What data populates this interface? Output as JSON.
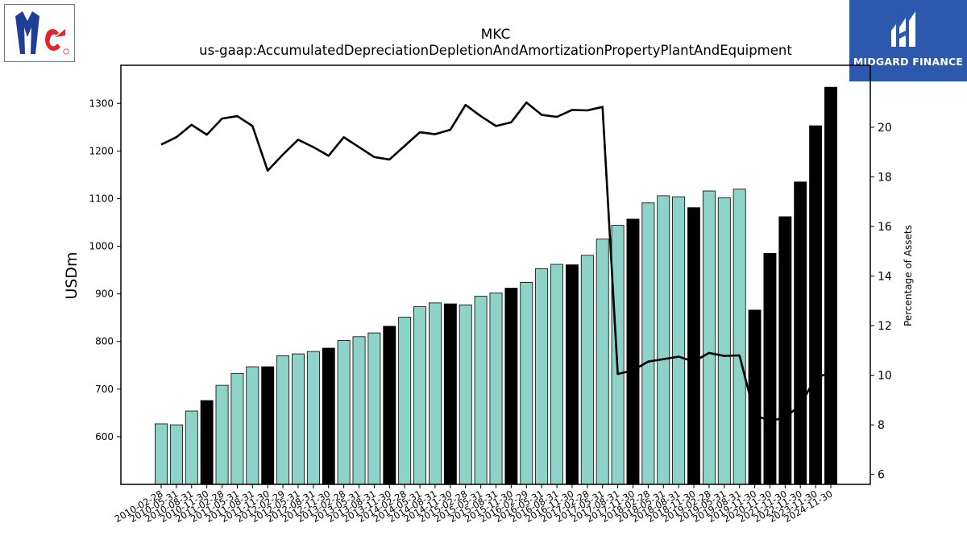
{
  "branding": {
    "company_logo_text": "Mc",
    "company_logo_icon": "mccormick-logo-icon",
    "watermark_name": "MIDGARD FINANCE",
    "watermark_icon": "midgard-finance-logo-icon"
  },
  "chart_data": {
    "type": "bar",
    "title": "MKC",
    "subtitle": "us-gaap:AccumulatedDepreciationDepletionAndAmortizationPropertyPlantAndEquipment",
    "ylabel": "USDm",
    "y2label": "Percentage of Assets",
    "ylim": [
      500,
      1380
    ],
    "y2lim": [
      5.6,
      22.5
    ],
    "yticks": [
      600,
      700,
      800,
      900,
      1000,
      1100,
      1200,
      1300
    ],
    "y2ticks": [
      6,
      8,
      10,
      12,
      14,
      16,
      18,
      20
    ],
    "grid": false,
    "categories": [
      "2010-02-28",
      "2010-05-31",
      "2010-08-31",
      "2010-11-30",
      "2011-02-28",
      "2011-05-31",
      "2011-08-31",
      "2011-11-30",
      "2012-02-29",
      "2012-05-31",
      "2012-08-31",
      "2012-11-30",
      "2013-02-28",
      "2013-05-31",
      "2013-08-31",
      "2013-11-30",
      "2014-02-28",
      "2014-05-31",
      "2014-08-31",
      "2014-11-30",
      "2015-02-28",
      "2015-05-31",
      "2015-08-31",
      "2015-11-30",
      "2016-02-29",
      "2016-05-31",
      "2016-08-31",
      "2016-11-30",
      "2017-02-28",
      "2017-05-31",
      "2017-08-31",
      "2017-11-30",
      "2018-02-28",
      "2018-05-31",
      "2018-08-31",
      "2018-11-30",
      "2019-02-28",
      "2019-05-31",
      "2019-08-31",
      "2019-11-30",
      "2020-11-30",
      "2021-11-30",
      "2022-11-30",
      "2023-11-30",
      "2024-11-30"
    ],
    "series": [
      {
        "type": "bar",
        "values": [
          627,
          625,
          654,
          676,
          708,
          733,
          747,
          747,
          770,
          774,
          779,
          786,
          802,
          810,
          818,
          832,
          851,
          873,
          881,
          879,
          877,
          895,
          902,
          912,
          924,
          953,
          962,
          961,
          981,
          1015,
          1044,
          1057,
          1091,
          1106,
          1104,
          1081,
          1116,
          1102,
          1120,
          866,
          985,
          1062,
          1135,
          1253,
          1334
        ],
        "colors": [
          "t",
          "t",
          "t",
          "k",
          "t",
          "t",
          "t",
          "k",
          "t",
          "t",
          "t",
          "k",
          "t",
          "t",
          "t",
          "k",
          "t",
          "t",
          "t",
          "k",
          "t",
          "t",
          "t",
          "k",
          "t",
          "t",
          "t",
          "k",
          "t",
          "t",
          "t",
          "k",
          "t",
          "t",
          "t",
          "k",
          "t",
          "t",
          "t",
          "k",
          "k",
          "k",
          "k",
          "k",
          "k"
        ],
        "color_key": {
          "t": "#8dd3c7",
          "k": "#000000"
        }
      },
      {
        "type": "line",
        "axis": "right",
        "color": "#000000",
        "values": [
          19.3,
          19.6,
          20.1,
          19.7,
          20.35,
          20.45,
          20.05,
          18.25,
          18.9,
          19.5,
          19.2,
          18.85,
          19.6,
          19.2,
          18.8,
          18.7,
          19.25,
          19.8,
          19.72,
          19.9,
          20.9,
          20.45,
          20.05,
          20.2,
          21.0,
          20.5,
          20.42,
          20.7,
          20.68,
          20.82,
          10.05,
          10.2,
          10.55,
          10.65,
          10.75,
          10.55,
          10.9,
          10.78,
          10.8,
          8.4,
          8.15,
          8.3,
          8.8,
          9.9,
          10.1
        ]
      }
    ]
  }
}
